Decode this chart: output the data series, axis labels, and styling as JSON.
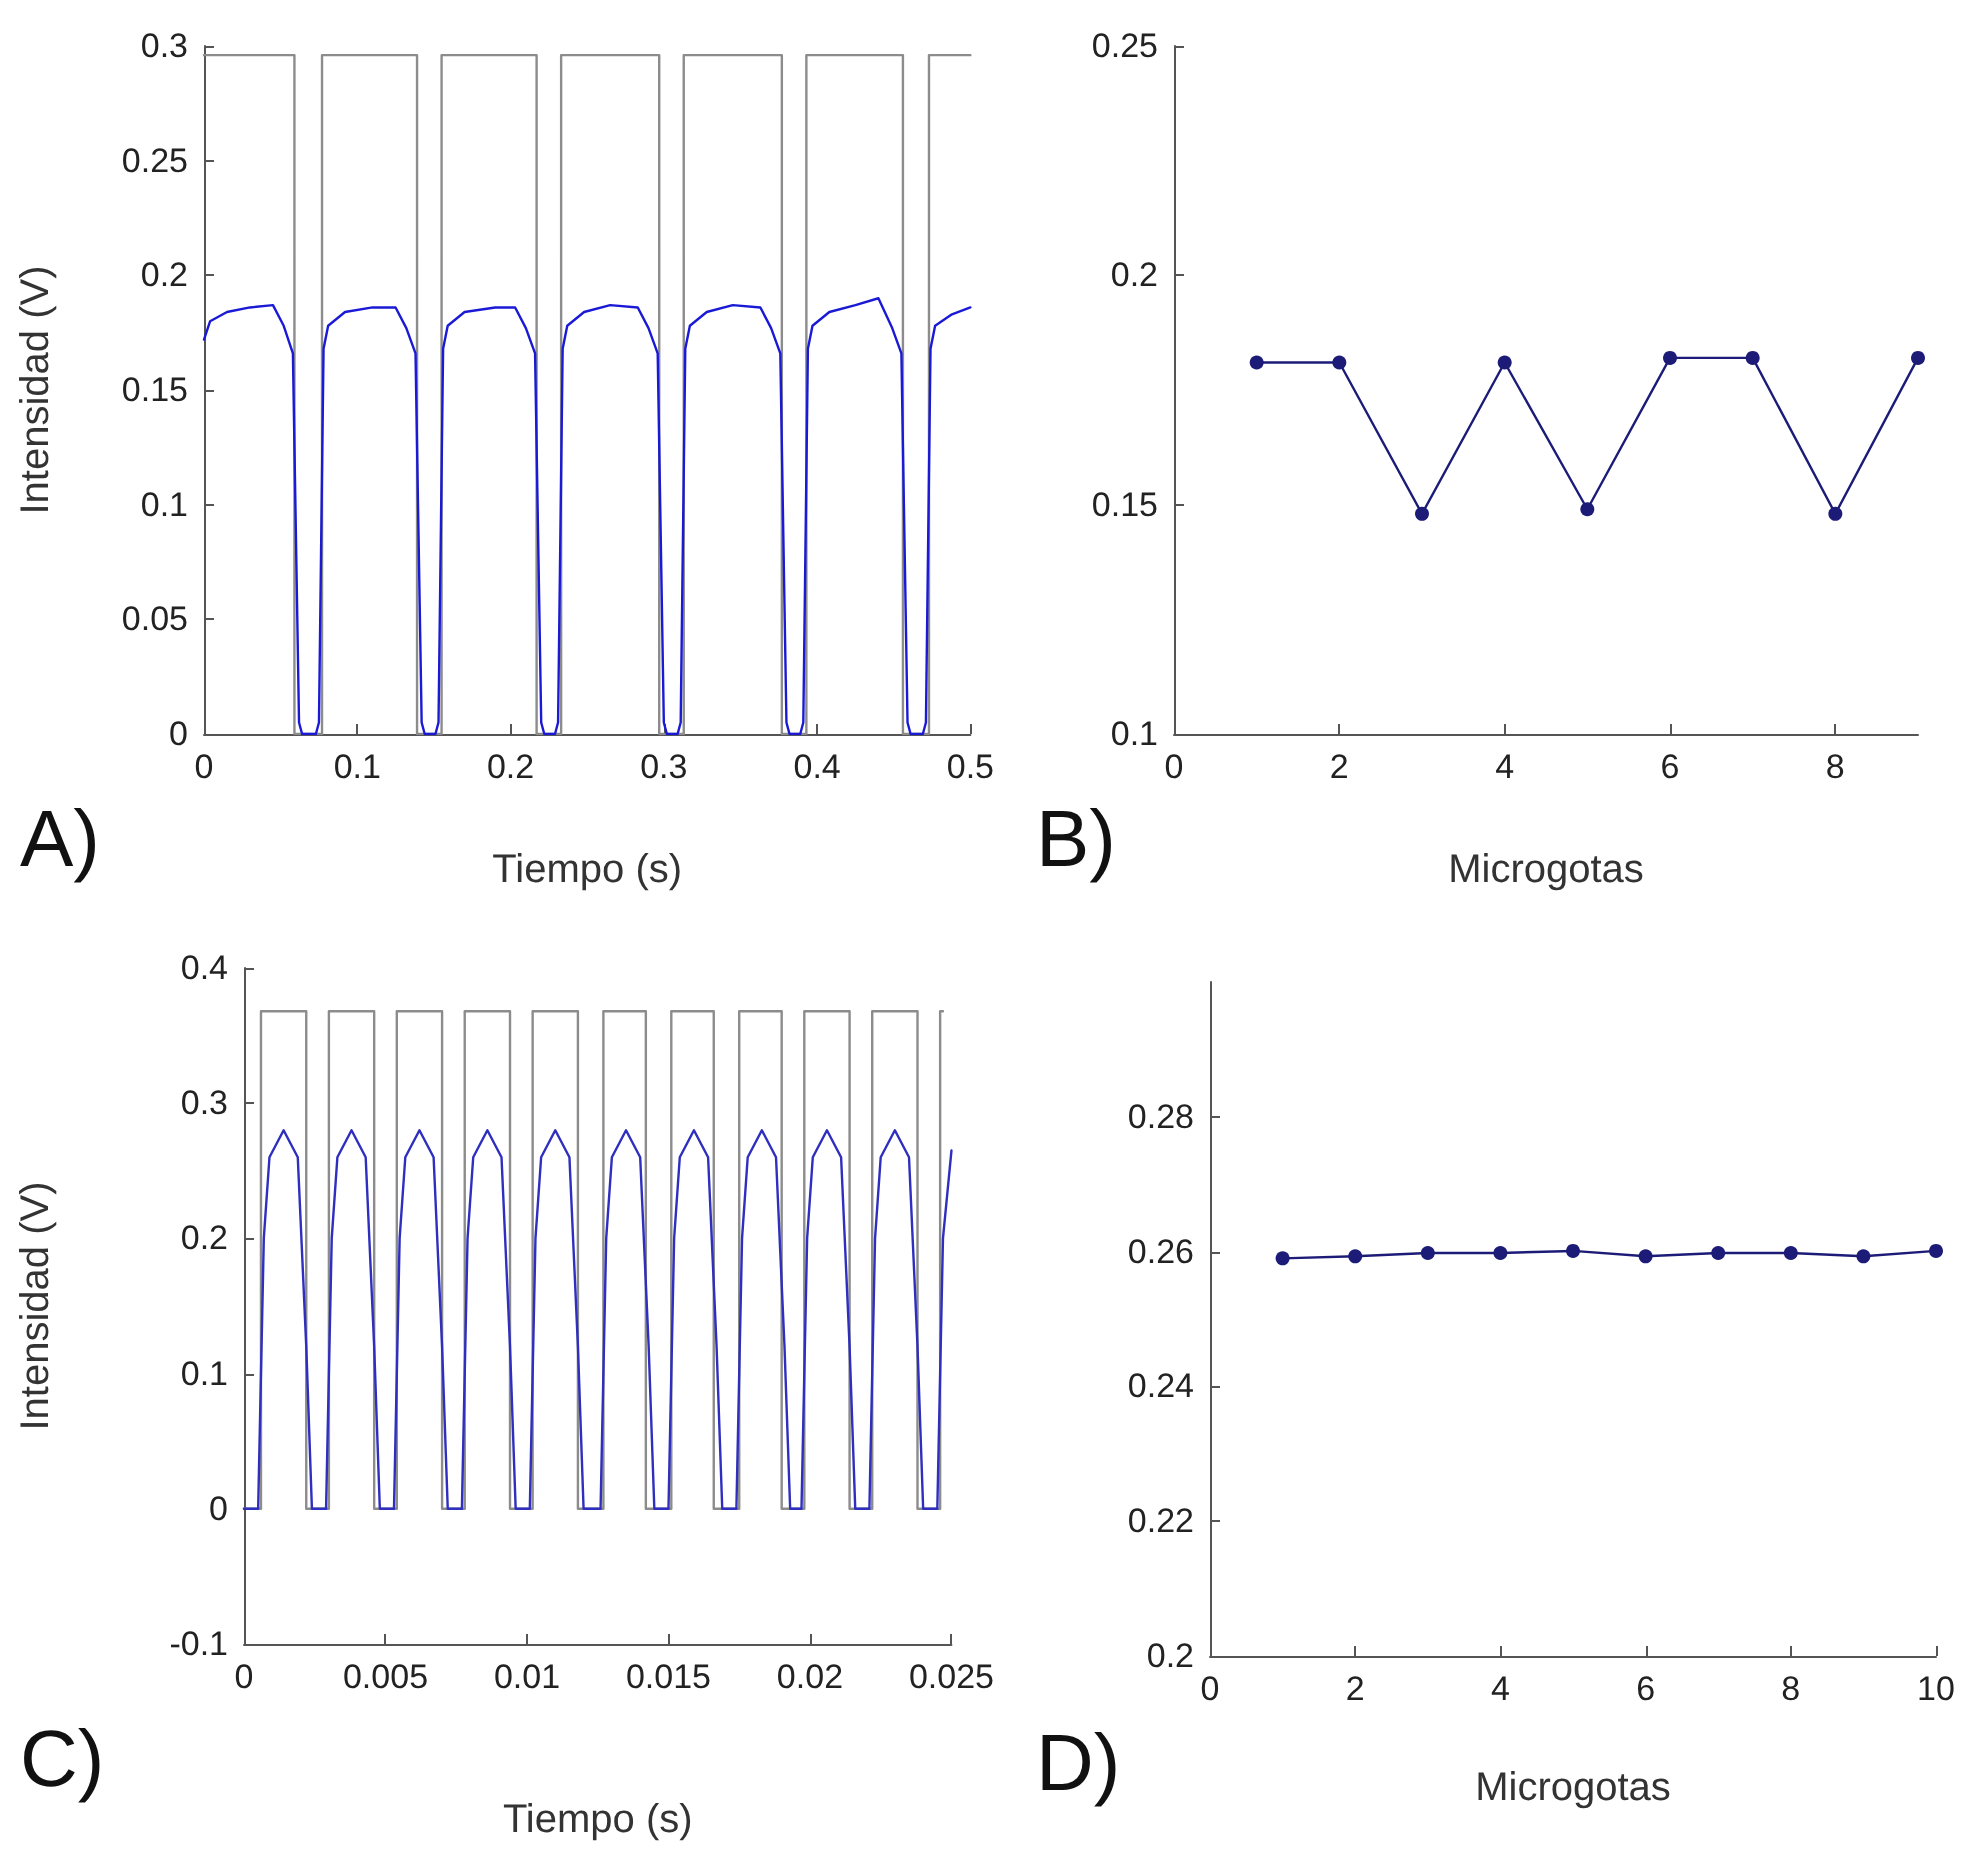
{
  "chart_data": [
    {
      "type": "line",
      "xlabel": "Tiempo (s)",
      "ylabel": "Intensidad (V)",
      "annotations": [
        "A)"
      ],
      "xlim": [
        0,
        0.5
      ],
      "ylim": [
        0,
        0.3
      ],
      "xticks": [
        0,
        0.1,
        0.2,
        0.3,
        0.4,
        0.5
      ],
      "yticks": [
        0,
        0.05,
        0.1,
        0.15,
        0.2,
        0.25,
        0.3
      ],
      "line_style": "solid",
      "series": [
        {
          "color": "#8c8c8c",
          "x": [
            0,
            0.059,
            0.059,
            0.077,
            0.077,
            0.139,
            0.139,
            0.155,
            0.155,
            0.217,
            0.217,
            0.233,
            0.233,
            0.297,
            0.297,
            0.313,
            0.313,
            0.377,
            0.377,
            0.393,
            0.393,
            0.456,
            0.456,
            0.473,
            0.473,
            0.5
          ],
          "values": [
            0.296,
            0.296,
            0,
            0,
            0.296,
            0.296,
            0,
            0,
            0.296,
            0.296,
            0,
            0,
            0.296,
            0.296,
            0,
            0,
            0.296,
            0.296,
            0,
            0,
            0.296,
            0.296,
            0,
            0,
            0.296,
            0.296
          ]
        },
        {
          "color": "#1a1ad6",
          "x": [
            0,
            0.004,
            0.015,
            0.03,
            0.045,
            0.052,
            0.058,
            0.062,
            0.064,
            0.073,
            0.075,
            0.078,
            0.081,
            0.092,
            0.11,
            0.125,
            0.132,
            0.138,
            0.142,
            0.144,
            0.151,
            0.153,
            0.156,
            0.159,
            0.17,
            0.19,
            0.203,
            0.21,
            0.216,
            0.22,
            0.222,
            0.229,
            0.231,
            0.234,
            0.237,
            0.248,
            0.265,
            0.283,
            0.29,
            0.296,
            0.3,
            0.302,
            0.309,
            0.311,
            0.314,
            0.317,
            0.328,
            0.345,
            0.363,
            0.37,
            0.376,
            0.38,
            0.382,
            0.389,
            0.391,
            0.394,
            0.397,
            0.408,
            0.425,
            0.44,
            0.449,
            0.455,
            0.459,
            0.461,
            0.469,
            0.471,
            0.474,
            0.477,
            0.488,
            0.5
          ],
          "values": [
            0.172,
            0.18,
            0.184,
            0.186,
            0.187,
            0.178,
            0.166,
            0.005,
            0,
            0,
            0.005,
            0.168,
            0.178,
            0.184,
            0.186,
            0.186,
            0.177,
            0.166,
            0.005,
            0,
            0,
            0.005,
            0.168,
            0.178,
            0.184,
            0.186,
            0.186,
            0.177,
            0.166,
            0.005,
            0,
            0,
            0.005,
            0.168,
            0.178,
            0.184,
            0.187,
            0.186,
            0.177,
            0.166,
            0.005,
            0,
            0,
            0.005,
            0.168,
            0.178,
            0.184,
            0.187,
            0.186,
            0.177,
            0.166,
            0.005,
            0,
            0,
            0.005,
            0.168,
            0.178,
            0.184,
            0.187,
            0.19,
            0.177,
            0.166,
            0.005,
            0,
            0,
            0.005,
            0.168,
            0.178,
            0.183,
            0.186
          ]
        }
      ]
    },
    {
      "type": "line",
      "xlabel": "Microgotas",
      "annotations": [
        "B)"
      ],
      "xlim": [
        0,
        9
      ],
      "ylim": [
        0.1,
        0.25
      ],
      "xticks": [
        0,
        2,
        4,
        6,
        8
      ],
      "yticks": [
        0.1,
        0.15,
        0.2,
        0.25
      ],
      "marker": "circle",
      "line_style": "solid",
      "series": [
        {
          "color": "#1c1c78",
          "x": [
            1,
            2,
            3,
            4,
            5,
            6,
            7,
            8,
            9
          ],
          "values": [
            0.181,
            0.181,
            0.148,
            0.181,
            0.149,
            0.182,
            0.182,
            0.148,
            0.182
          ]
        }
      ]
    },
    {
      "type": "line",
      "xlabel": "Tiempo (s)",
      "ylabel": "Intensidad (V)",
      "annotations": [
        "C)"
      ],
      "xlim": [
        0,
        0.025
      ],
      "ylim": [
        -0.1,
        0.4
      ],
      "xticks": [
        0,
        0.005,
        0.01,
        0.015,
        0.02,
        0.025
      ],
      "yticks": [
        -0.1,
        0,
        0.1,
        0.2,
        0.3,
        0.4
      ],
      "line_style": "solid",
      "series": [
        {
          "color": "#8c8c8c",
          "x": [
            0,
            0.0006,
            0.0006,
            0.0022,
            0.0022,
            0.003,
            0.003,
            0.0046,
            0.0046,
            0.0054,
            0.0054,
            0.007,
            0.007,
            0.0078,
            0.0078,
            0.0094,
            0.0094,
            0.0102,
            0.0102,
            0.0118,
            0.0118,
            0.0127,
            0.0127,
            0.0142,
            0.0142,
            0.0151,
            0.0151,
            0.0166,
            0.0166,
            0.0175,
            0.0175,
            0.019,
            0.019,
            0.0198,
            0.0198,
            0.0214,
            0.0214,
            0.0222,
            0.0222,
            0.0238,
            0.0238,
            0.0246,
            0.0246,
            0.0247
          ],
          "values": [
            0,
            0,
            0.368,
            0.368,
            0,
            0,
            0.368,
            0.368,
            0,
            0,
            0.368,
            0.368,
            0,
            0,
            0.368,
            0.368,
            0,
            0,
            0.368,
            0.368,
            0,
            0,
            0.368,
            0.368,
            0,
            0,
            0.368,
            0.368,
            0,
            0,
            0.368,
            0.368,
            0,
            0,
            0.368,
            0.368,
            0,
            0,
            0.368,
            0.368,
            0,
            0,
            0.368,
            0.368
          ]
        },
        {
          "color": "#2e2ebf",
          "x": [
            0,
            0.0005,
            0.0007,
            0.0009,
            0.0014,
            0.0019,
            0.0022,
            0.0024,
            0.0029,
            0.0031,
            0.0033,
            0.0038,
            0.0043,
            0.0046,
            0.0048,
            0.0053,
            0.0055,
            0.0057,
            0.0062,
            0.0067,
            0.007,
            0.0072,
            0.0077,
            0.0079,
            0.0081,
            0.0086,
            0.0091,
            0.0094,
            0.0096,
            0.0101,
            0.0103,
            0.0105,
            0.011,
            0.0115,
            0.0118,
            0.012,
            0.0126,
            0.0128,
            0.013,
            0.0135,
            0.014,
            0.0143,
            0.0145,
            0.015,
            0.0152,
            0.0154,
            0.0159,
            0.0164,
            0.0167,
            0.0169,
            0.0174,
            0.0176,
            0.0178,
            0.0183,
            0.0188,
            0.0191,
            0.0193,
            0.0197,
            0.0199,
            0.0201,
            0.0206,
            0.0211,
            0.0214,
            0.0216,
            0.0221,
            0.0223,
            0.0225,
            0.023,
            0.0235,
            0.0238,
            0.024,
            0.0245,
            0.0247,
            0.025
          ],
          "values": [
            0,
            0,
            0.2,
            0.26,
            0.28,
            0.26,
            0.12,
            0,
            0,
            0.2,
            0.26,
            0.28,
            0.26,
            0.12,
            0,
            0,
            0.2,
            0.26,
            0.28,
            0.26,
            0.12,
            0,
            0,
            0.2,
            0.26,
            0.28,
            0.26,
            0.12,
            0,
            0,
            0.2,
            0.26,
            0.28,
            0.26,
            0.12,
            0,
            0,
            0.2,
            0.26,
            0.28,
            0.26,
            0.12,
            0,
            0,
            0.2,
            0.26,
            0.28,
            0.26,
            0.12,
            0,
            0,
            0.2,
            0.26,
            0.28,
            0.26,
            0.12,
            0,
            0,
            0.2,
            0.26,
            0.28,
            0.26,
            0.12,
            0,
            0,
            0.2,
            0.26,
            0.28,
            0.26,
            0.12,
            0,
            0,
            0.2,
            0.265
          ]
        }
      ]
    },
    {
      "type": "line",
      "xlabel": "Microgotas",
      "annotations": [
        "D)"
      ],
      "xlim": [
        0,
        10
      ],
      "ylim": [
        0.2,
        0.3
      ],
      "xticks": [
        0,
        2,
        4,
        6,
        8,
        10
      ],
      "yticks": [
        0.2,
        0.22,
        0.24,
        0.26,
        0.28
      ],
      "marker": "circle",
      "line_style": "solid",
      "series": [
        {
          "color": "#1c1c78",
          "x": [
            1,
            2,
            3,
            4,
            5,
            6,
            7,
            8,
            9,
            10
          ],
          "values": [
            0.259,
            0.2593,
            0.2598,
            0.2598,
            0.2601,
            0.2593,
            0.2598,
            0.2598,
            0.2593,
            0.2601
          ]
        }
      ]
    }
  ]
}
